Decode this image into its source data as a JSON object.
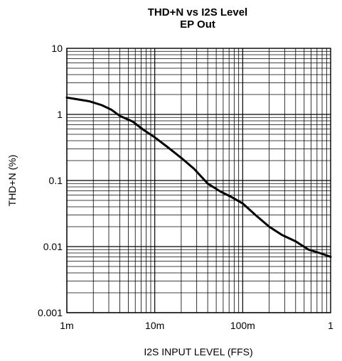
{
  "chart_data": {
    "type": "line",
    "title": "THD+N vs I2S Level",
    "subtitle": "EP Out",
    "xlabel": "I2S INPUT LEVEL (FFS)",
    "ylabel": "THD+N (%)",
    "x_scale": "log",
    "y_scale": "log",
    "xlim": [
      0.001,
      1
    ],
    "ylim": [
      0.001,
      10
    ],
    "grid": true,
    "x_tick_labels": [
      "1m",
      "10m",
      "100m",
      "1"
    ],
    "y_tick_labels": [
      "0.001",
      "0.01",
      "0.1",
      "1",
      "10"
    ],
    "series": [
      {
        "x": [
          0.001,
          0.0013,
          0.0018,
          0.0025,
          0.0032,
          0.004,
          0.0056,
          0.0075,
          0.01,
          0.014,
          0.02,
          0.028,
          0.04,
          0.056,
          0.075,
          0.1,
          0.14,
          0.2,
          0.28,
          0.4,
          0.56,
          0.75,
          1.0
        ],
        "y": [
          1.8,
          1.7,
          1.58,
          1.38,
          1.18,
          0.95,
          0.78,
          0.58,
          0.45,
          0.32,
          0.22,
          0.15,
          0.09,
          0.068,
          0.056,
          0.045,
          0.03,
          0.02,
          0.015,
          0.012,
          0.009,
          0.008,
          0.007
        ]
      }
    ]
  }
}
